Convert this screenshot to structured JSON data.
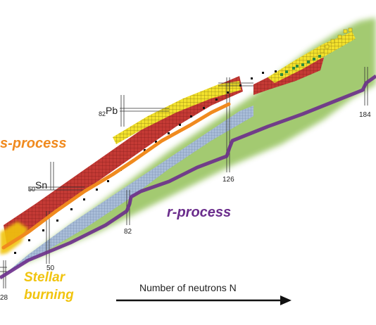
{
  "labels": {
    "pb": {
      "sub": "82",
      "sym": "Pb"
    },
    "sn": {
      "sub": "50",
      "sym": "Sn"
    },
    "n28": "28",
    "n50": "50",
    "n82": "82",
    "n126": "126",
    "n184": "184"
  },
  "processes": {
    "s_process": "s-process",
    "r_process": "r-process",
    "stellar1": "Stellar",
    "stellar2": "burning"
  },
  "axis": {
    "label": "Number of neutrons N"
  },
  "colors": {
    "green_region": "#9fc86a",
    "stable_blue": "#a9bdd8",
    "red_region": "#c43a35",
    "yellow_region": "#f2e12c",
    "dark_green": "#2f8a3d",
    "s_path": "#f08a1e",
    "r_path": "#6b2d8c",
    "stellar": "#f1c40f",
    "stable_black": "#111111"
  }
}
